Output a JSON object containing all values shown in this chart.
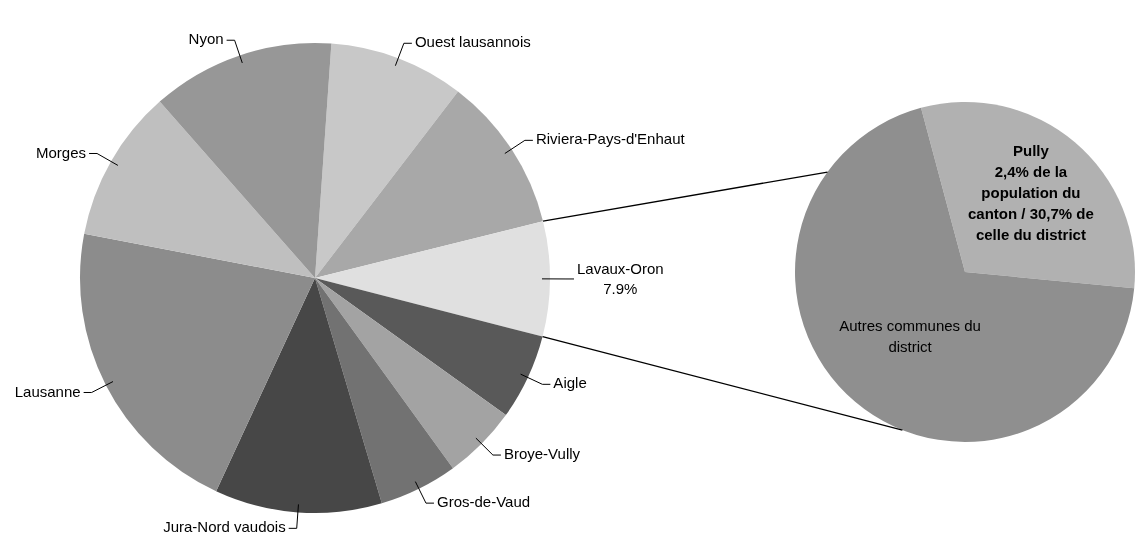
{
  "chart_data": [
    {
      "type": "pie",
      "categories": [
        "Ouest lausannois",
        "Riviera-Pays-d'Enhaut",
        "Lavaux-Oron",
        "Aigle",
        "Broye-Vully",
        "Gros-de-Vaud",
        "Jura-Nord vaudois",
        "Lausanne",
        "Morges",
        "Nyon"
      ],
      "values": [
        9.3,
        10.7,
        7.9,
        5.9,
        5.1,
        5.4,
        11.5,
        21.1,
        10.5,
        12.6
      ],
      "colors": [
        "#c8c8c8",
        "#a8a8a8",
        "#e0e0e0",
        "#595959",
        "#a3a3a3",
        "#727272",
        "#474747",
        "#8c8c8c",
        "#bfbfbf",
        "#979797"
      ],
      "value_labels": [
        null,
        null,
        "7.9%",
        null,
        null,
        null,
        null,
        null,
        null,
        null
      ]
    },
    {
      "type": "pie",
      "categories": [
        "Pully",
        "Autres communes du district"
      ],
      "values": [
        30.7,
        69.3
      ],
      "colors": [
        "#b1b1b1",
        "#8f8f8f"
      ],
      "value_labels": [
        "2,4% de la population du canton / 30,7% de celle du district",
        null
      ]
    }
  ]
}
